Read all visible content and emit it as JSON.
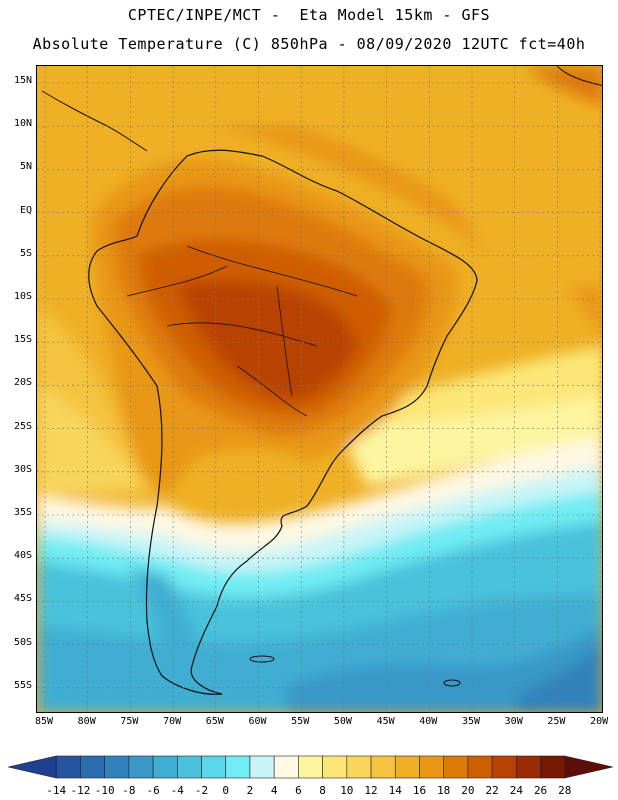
{
  "title": {
    "line1": "CPTEC/INPE/MCT -  Eta Model 15km - GFS",
    "line2": "Absolute Temperature (C) 850hPa - 08/09/2020 12UTC fct=40h"
  },
  "map": {
    "lat_labels": [
      "15N",
      "10N",
      "5N",
      "EQ",
      "5S",
      "10S",
      "15S",
      "20S",
      "25S",
      "30S",
      "35S",
      "40S",
      "45S",
      "50S",
      "55S"
    ],
    "lon_labels": [
      "85W",
      "80W",
      "75W",
      "70W",
      "65W",
      "60W",
      "55W",
      "50W",
      "45W",
      "40W",
      "35W",
      "30W",
      "25W",
      "20W"
    ]
  },
  "colorbar": {
    "labels": [
      "-14",
      "-12",
      "-10",
      "-8",
      "-6",
      "-4",
      "-2",
      "0",
      "2",
      "4",
      "6",
      "8",
      "10",
      "12",
      "14",
      "16",
      "18",
      "20",
      "22",
      "24",
      "26",
      "28"
    ],
    "colors": [
      "#1f3f8f",
      "#25559e",
      "#2b6cae",
      "#3282bc",
      "#3998c8",
      "#40add2",
      "#49c2dc",
      "#5ad7e8",
      "#70ecf3",
      "#c8f4f7",
      "#fef8e4",
      "#fdf5a0",
      "#fbe677",
      "#f8d65b",
      "#f4c440",
      "#efb026",
      "#e99714",
      "#de7a08",
      "#cf5d04",
      "#b84202",
      "#9a2b02",
      "#761802",
      "#5c0e08"
    ]
  },
  "legend_meaning": {
    "warmest": "28",
    "coldest": "-14"
  }
}
